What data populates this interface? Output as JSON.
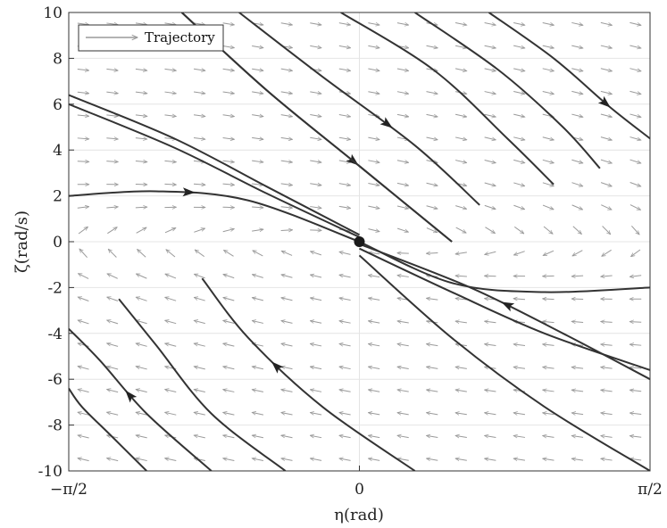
{
  "chart_data": {
    "type": "line",
    "subtype": "phase-portrait",
    "title": "",
    "xlabel": "η(rad)",
    "ylabel": "ζ(rad/s)",
    "xlim": [
      -1.5708,
      1.5708
    ],
    "ylim": [
      -10,
      10
    ],
    "x_ticks": [
      -1.5708,
      0,
      1.5708
    ],
    "x_tick_labels": [
      "−π/2",
      "0",
      "π/2"
    ],
    "y_ticks": [
      -10,
      -8,
      -6,
      -4,
      -2,
      0,
      2,
      4,
      6,
      8,
      10
    ],
    "y_tick_labels": [
      "-10",
      "-8",
      "-6",
      "-4",
      "-2",
      "0",
      "2",
      "4",
      "6",
      "8",
      "10"
    ],
    "grid": true,
    "legend": {
      "position": "top-left",
      "entries": [
        "Trajectory"
      ]
    },
    "equilibrium": {
      "x": 0,
      "y": 0
    },
    "vector_field": {
      "dx": "ζ",
      "dy": "-2.5·η - 1.5·ζ",
      "color": "#9a9a9a"
    },
    "series": [
      {
        "x": [
          -0.96,
          -0.5,
          0,
          0.5
        ],
        "y": [
          10,
          6.6,
          3.3,
          0
        ],
        "arrows": [
          0.64
        ]
      },
      {
        "x": [
          -0.96,
          -0.5,
          0,
          0.5
        ],
        "y": [
          10,
          6.6,
          3.3,
          0
        ],
        "arrows": []
      },
      {
        "x": [
          -0.65,
          -0.2,
          0.3,
          0.65
        ],
        "y": [
          10,
          7.2,
          4.2,
          1.6
        ],
        "arrows": [
          0.6
        ]
      },
      {
        "x": [
          -0.1,
          0.4,
          0.8,
          1.05
        ],
        "y": [
          10,
          7.5,
          4.5,
          2.5
        ],
        "arrows": []
      },
      {
        "x": [
          0.3,
          0.75,
          1.1,
          1.3
        ],
        "y": [
          10,
          7.5,
          5.0,
          3.2
        ],
        "arrows": []
      },
      {
        "x": [
          0.7,
          1.05,
          1.35,
          1.5708
        ],
        "y": [
          10,
          8.0,
          5.9,
          4.5
        ],
        "arrows": [
          0.72
        ]
      },
      {
        "x": [
          -1.5708,
          -1.0,
          -0.5,
          0
        ],
        "y": [
          6.4,
          4.5,
          2.4,
          0.3
        ],
        "arrows": []
      },
      {
        "x": [
          -1.5708,
          -1.0,
          -0.5,
          0
        ],
        "y": [
          6.0,
          4.1,
          2.1,
          0.2
        ],
        "arrows": []
      },
      {
        "x": [
          -1.5708,
          -1.1,
          -0.6,
          0
        ],
        "y": [
          2.0,
          2.2,
          1.8,
          0
        ],
        "arrows": [
          0.4
        ]
      },
      {
        "x": [
          1.5708,
          1.0,
          0.5,
          0
        ],
        "y": [
          -2.0,
          -2.2,
          -1.8,
          0
        ],
        "arrows": []
      },
      {
        "x": [
          1.5708,
          1.1,
          0.6,
          0
        ],
        "y": [
          -6.0,
          -4.0,
          -2.0,
          -0.1
        ],
        "arrows": [
          0.5
        ]
      },
      {
        "x": [
          1.5708,
          1.0,
          0.5,
          0
        ],
        "y": [
          -5.6,
          -4.0,
          -2.2,
          -0.3
        ],
        "arrows": []
      },
      {
        "x": [
          1.5708,
          1.0,
          0.5,
          0
        ],
        "y": [
          -10,
          -7.2,
          -4.2,
          -0.6
        ],
        "arrows": []
      },
      {
        "x": [
          0.3,
          -0.2,
          -0.6,
          -0.85
        ],
        "y": [
          -10,
          -7.2,
          -4.2,
          -1.6
        ],
        "arrows": [
          0.6
        ]
      },
      {
        "x": [
          -0.4,
          -0.8,
          -1.1,
          -1.3
        ],
        "y": [
          -10,
          -7.5,
          -4.5,
          -2.5
        ],
        "arrows": []
      },
      {
        "x": [
          -0.8,
          -1.15,
          -1.4,
          -1.5708
        ],
        "y": [
          -10,
          -7.5,
          -5.2,
          -3.8
        ],
        "arrows": [
          0.55
        ]
      },
      {
        "x": [
          -1.15,
          -1.35,
          -1.5,
          -1.5708
        ],
        "y": [
          -10,
          -8.4,
          -7.2,
          -6.4
        ],
        "arrows": []
      }
    ]
  }
}
